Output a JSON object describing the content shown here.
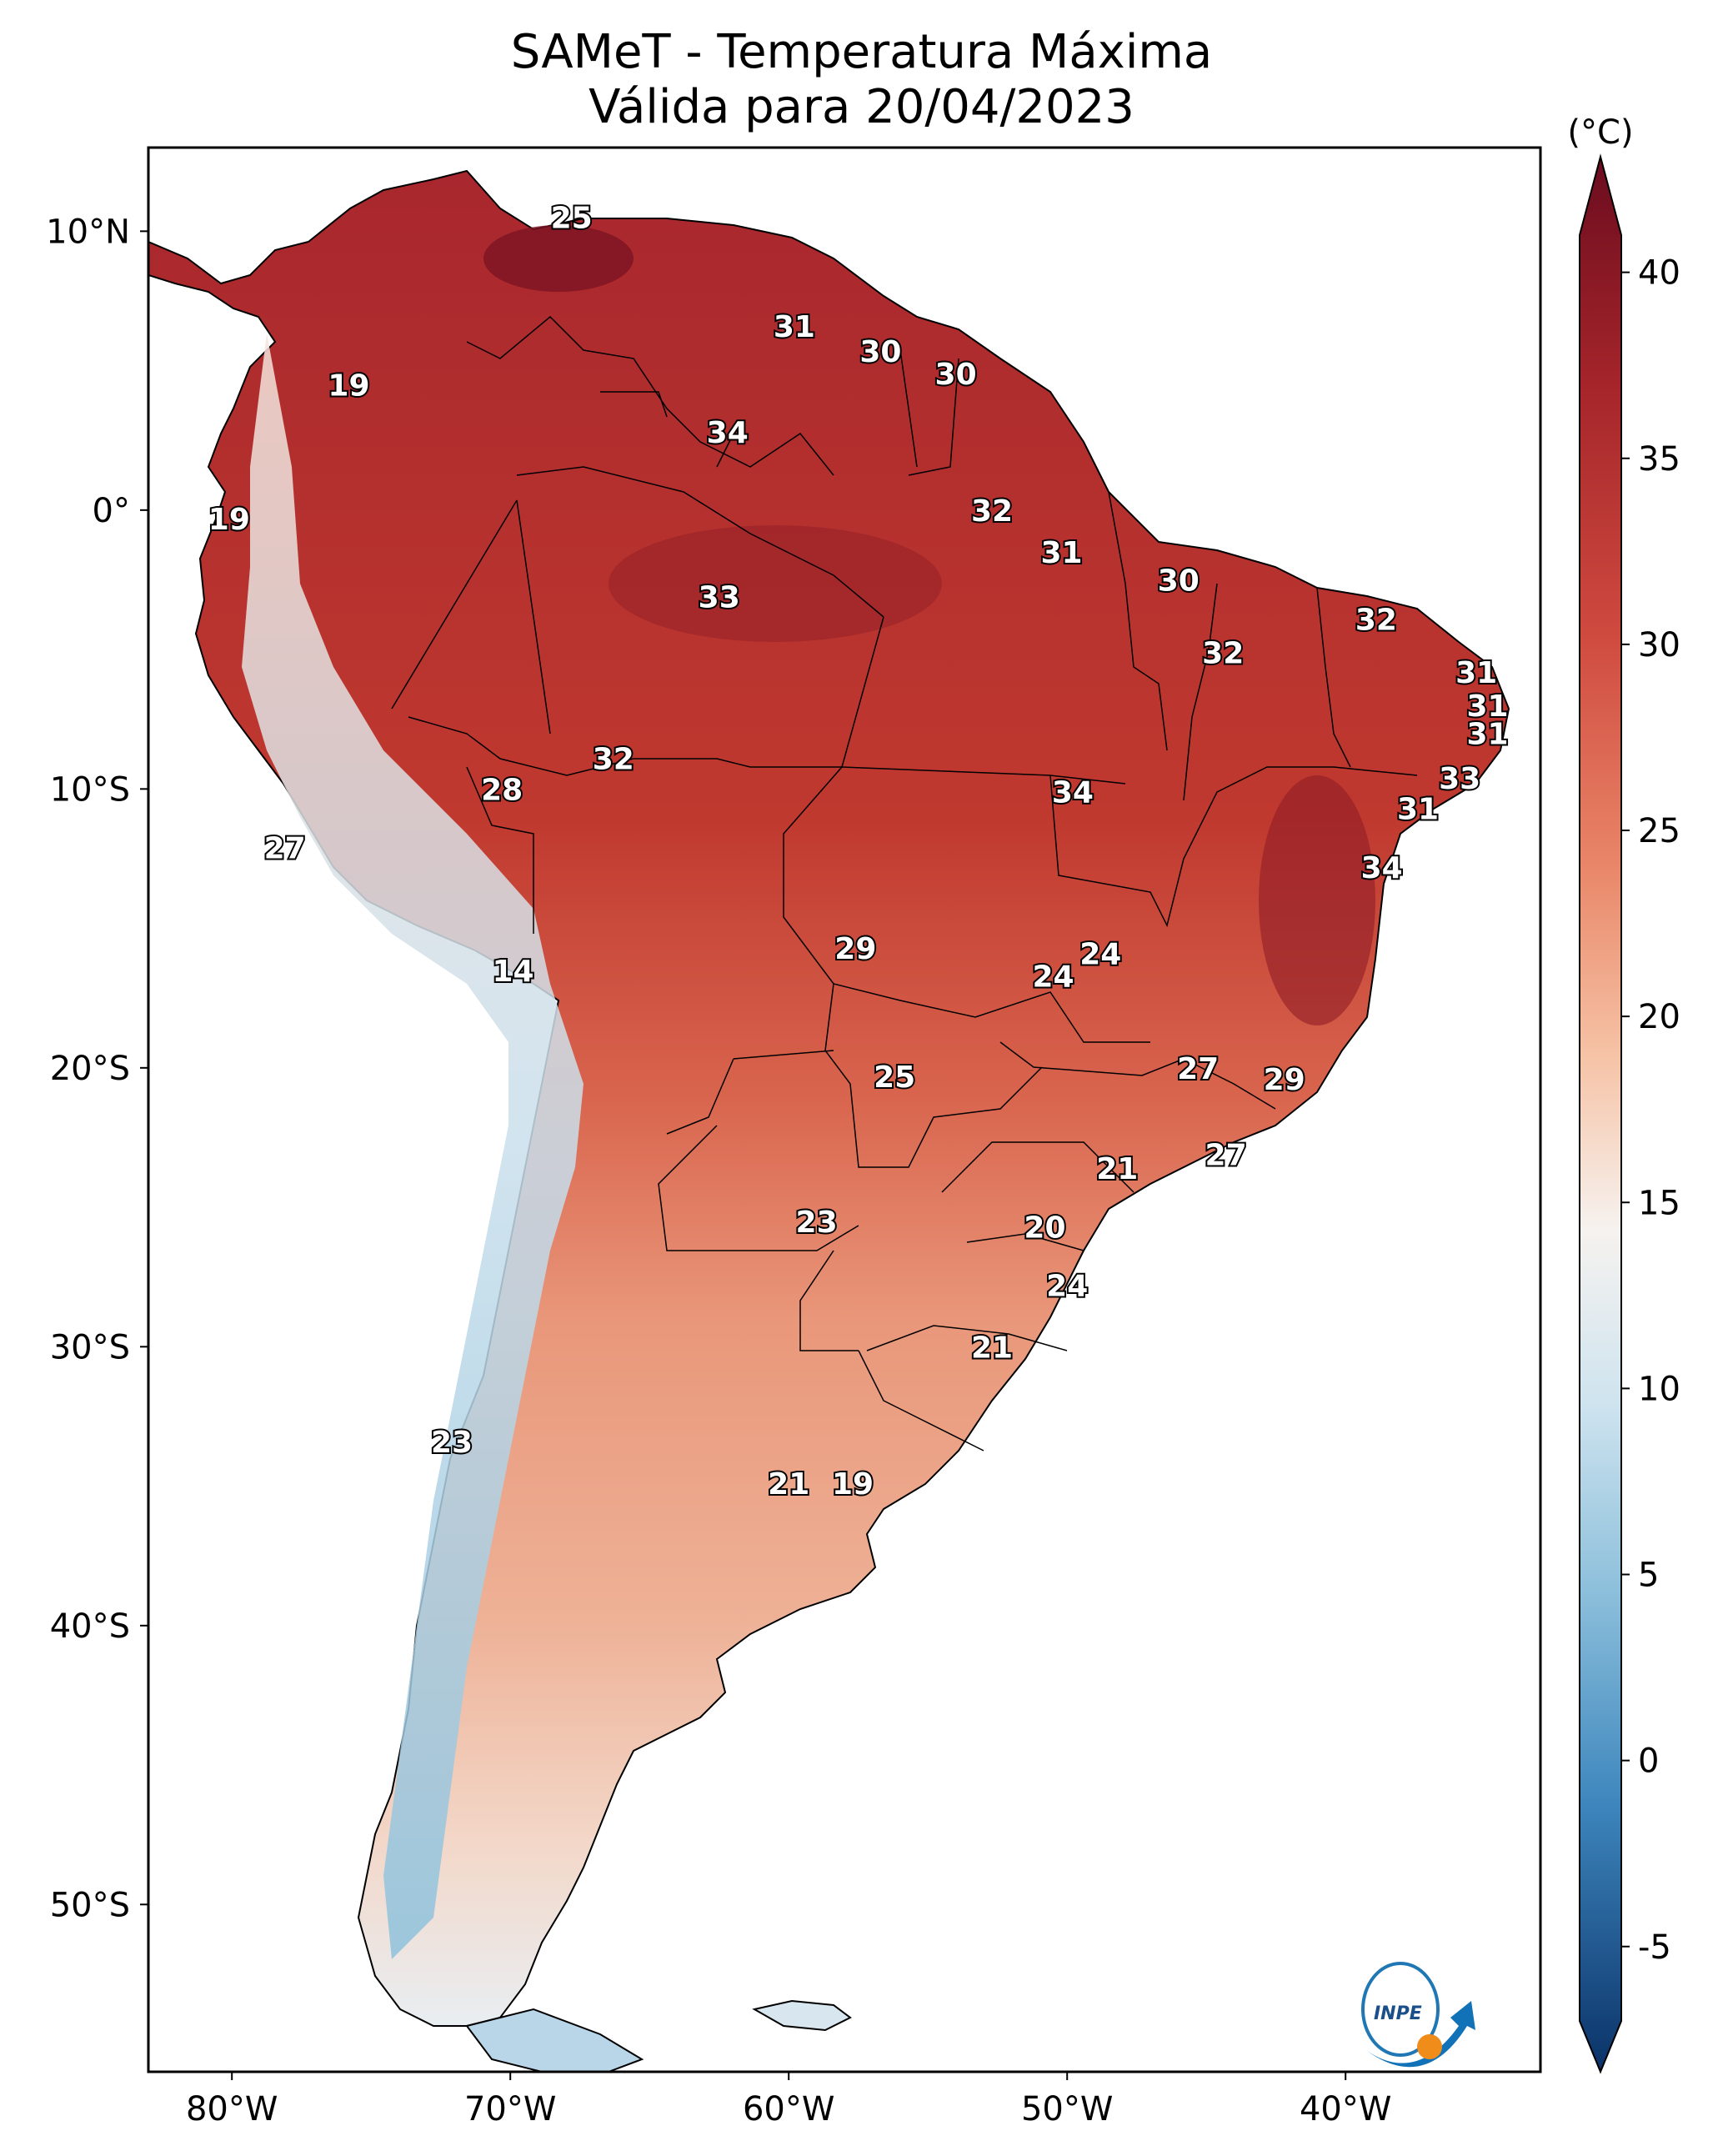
{
  "title": {
    "line1": "SAMeT - Temperatura Máxima",
    "line2": "Válida para 20/04/2023"
  },
  "map": {
    "lon_ticks": [
      "80°W",
      "70°W",
      "60°W",
      "50°W",
      "40°W"
    ],
    "lat_ticks": [
      "10°N",
      "0°",
      "10°S",
      "20°S",
      "30°S",
      "40°S",
      "50°S"
    ],
    "extent": {
      "lon": [
        -83,
        -33
      ],
      "lat": [
        -56,
        13
      ]
    },
    "labels": [
      {
        "v": "25",
        "lon": -67.8,
        "lat": 10.5
      },
      {
        "v": "19",
        "lon": -75.8,
        "lat": 4.5
      },
      {
        "v": "31",
        "lon": -59.8,
        "lat": 6.6
      },
      {
        "v": "30",
        "lon": -56.7,
        "lat": 5.7
      },
      {
        "v": "30",
        "lon": -54.0,
        "lat": 4.9
      },
      {
        "v": "34",
        "lon": -62.2,
        "lat": 2.8
      },
      {
        "v": "19",
        "lon": -80.1,
        "lat": -0.3
      },
      {
        "v": "32",
        "lon": -52.7,
        "lat": 0.0
      },
      {
        "v": "31",
        "lon": -50.2,
        "lat": -1.5
      },
      {
        "v": "33",
        "lon": -62.5,
        "lat": -3.1
      },
      {
        "v": "30",
        "lon": -46.0,
        "lat": -2.5
      },
      {
        "v": "32",
        "lon": -38.9,
        "lat": -3.9
      },
      {
        "v": "32",
        "lon": -44.4,
        "lat": -5.1
      },
      {
        "v": "31",
        "lon": -35.3,
        "lat": -5.8
      },
      {
        "v": "31",
        "lon": -34.9,
        "lat": -7.0
      },
      {
        "v": "31",
        "lon": -34.9,
        "lat": -8.0
      },
      {
        "v": "32",
        "lon": -66.3,
        "lat": -8.9
      },
      {
        "v": "28",
        "lon": -70.3,
        "lat": -10.0
      },
      {
        "v": "34",
        "lon": -49.8,
        "lat": -10.1
      },
      {
        "v": "33",
        "lon": -35.9,
        "lat": -9.6
      },
      {
        "v": "31",
        "lon": -37.4,
        "lat": -10.7
      },
      {
        "v": "27",
        "lon": -78.1,
        "lat": -12.1
      },
      {
        "v": "34",
        "lon": -38.7,
        "lat": -12.8
      },
      {
        "v": "14",
        "lon": -69.9,
        "lat": -16.5
      },
      {
        "v": "29",
        "lon": -57.6,
        "lat": -15.7
      },
      {
        "v": "24",
        "lon": -50.5,
        "lat": -16.7
      },
      {
        "v": "24",
        "lon": -48.8,
        "lat": -15.9
      },
      {
        "v": "27",
        "lon": -45.3,
        "lat": -20.0
      },
      {
        "v": "29",
        "lon": -42.2,
        "lat": -20.4
      },
      {
        "v": "25",
        "lon": -56.2,
        "lat": -20.3
      },
      {
        "v": "21",
        "lon": -48.2,
        "lat": -23.6
      },
      {
        "v": "27",
        "lon": -44.3,
        "lat": -23.1
      },
      {
        "v": "23",
        "lon": -59.0,
        "lat": -25.5
      },
      {
        "v": "20",
        "lon": -50.8,
        "lat": -25.7
      },
      {
        "v": "24",
        "lon": -50.0,
        "lat": -27.8
      },
      {
        "v": "21",
        "lon": -52.7,
        "lat": -30.0
      },
      {
        "v": "23",
        "lon": -72.1,
        "lat": -33.4
      },
      {
        "v": "21",
        "lon": -60.0,
        "lat": -34.9
      },
      {
        "v": "19",
        "lon": -57.7,
        "lat": -34.9
      }
    ]
  },
  "colorbar": {
    "unit": "(°C)",
    "ticks": [
      "40",
      "35",
      "30",
      "25",
      "20",
      "15",
      "10",
      "5",
      "0",
      "-5"
    ],
    "range": [
      -7,
      41
    ]
  },
  "logo": {
    "text": "INPE"
  },
  "colors": {
    "hot": "#9b1d26",
    "warm": "#e8866a",
    "neutral": "#f7f4f2",
    "cool": "#8ec1dc",
    "cold": "#1d5b99"
  }
}
